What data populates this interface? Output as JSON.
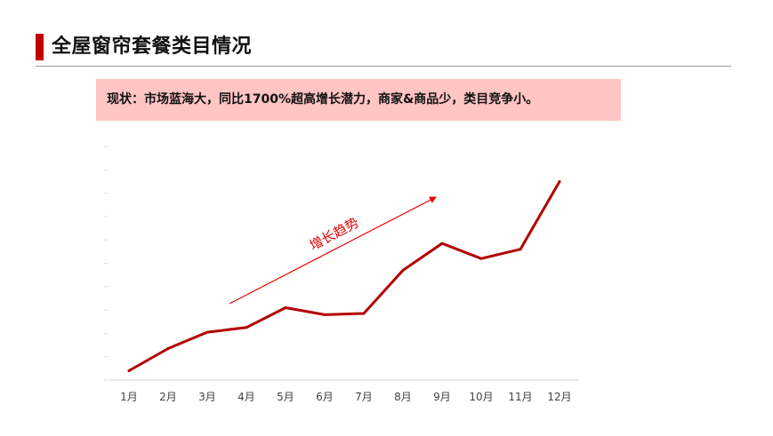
{
  "header": {
    "title": "全屋窗帘套餐类目情况"
  },
  "status": {
    "text": "现状：市场蓝海大，同比1700%超高增长潜力，商家&商品少，类目竞争小。"
  },
  "annotation": {
    "trend_label": "增长趋势"
  },
  "colors": {
    "accent": "#c00000",
    "status_bg": "#ffc4c4",
    "series": "#b30000",
    "arrow": "#e60000"
  },
  "chart_data": {
    "type": "line",
    "title": "",
    "xlabel": "",
    "ylabel": "",
    "categories": [
      "1月",
      "2月",
      "3月",
      "4月",
      "5月",
      "6月",
      "7月",
      "8月",
      "9月",
      "10月",
      "11月",
      "12月"
    ],
    "series": [
      {
        "values": [
          0.4,
          1.35,
          2.05,
          2.25,
          3.1,
          2.8,
          2.85,
          4.7,
          5.85,
          5.2,
          5.6,
          8.5
        ]
      }
    ],
    "ylim": [
      0,
      10
    ],
    "grid": false,
    "legend": "none"
  }
}
